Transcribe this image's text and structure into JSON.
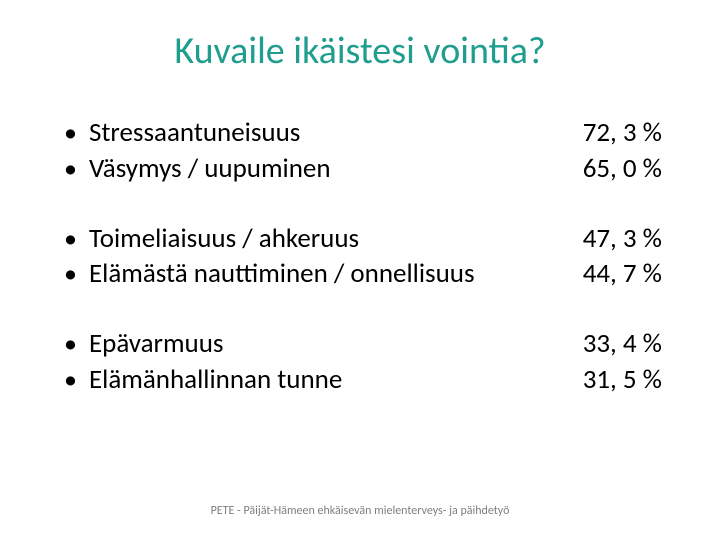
{
  "title": "Kuvaile ikäistesi vointia?",
  "groups": [
    {
      "items": [
        {
          "label": "Stressaantuneisuus",
          "value": "72, 3 %"
        },
        {
          "label": "Väsymys / uupuminen",
          "value": "65, 0 %"
        }
      ]
    },
    {
      "items": [
        {
          "label": "Toimeliaisuus / ahkeruus",
          "value": "47, 3 %"
        },
        {
          "label": "Elämästä nauttiminen / onnellisuus",
          "value": "44, 7 %"
        }
      ]
    },
    {
      "items": [
        {
          "label": "Epävarmuus",
          "value": "33, 4 %"
        },
        {
          "label": "Elämänhallinnan tunne",
          "value": "31, 5 %"
        }
      ]
    }
  ],
  "footer": "PETE - Päijät-Hämeen ehkäisevän mielenterveys- ja päihdetyö",
  "colors": {
    "title": "#1f9e8e",
    "text": "#000000",
    "footer": "#7f7f7f",
    "background": "#ffffff"
  },
  "typography": {
    "title_fontsize": 38,
    "body_fontsize": 27,
    "footer_fontsize": 12,
    "font_family": "Calibri"
  }
}
